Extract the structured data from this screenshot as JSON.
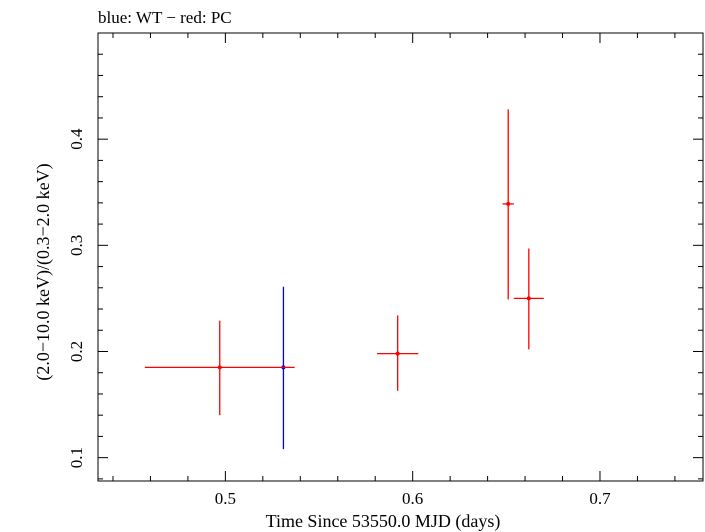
{
  "chart_data": {
    "type": "scatter",
    "title": "blue: WT − red: PC",
    "xlabel": "Time Since 53550.0 MJD (days)",
    "ylabel": "(2.0−10.0 keV)/(0.3−2.0 keV)",
    "xlim": [
      0.432,
      0.755
    ],
    "ylim": [
      0.078,
      0.5
    ],
    "x_ticks": [
      0.5,
      0.6,
      0.7
    ],
    "x_tick_labels": [
      "0.5",
      "0.6",
      "0.7"
    ],
    "y_ticks": [
      0.1,
      0.2,
      0.3,
      0.4
    ],
    "y_tick_labels": [
      "0.1",
      "0.2",
      "0.3",
      "0.4"
    ],
    "grid": false,
    "legend": "none",
    "series": [
      {
        "name": "WT",
        "color": "#0000ff",
        "points": [
          {
            "x": 0.531,
            "y": 0.185,
            "xerr": [
              0.0,
              0.0
            ],
            "yerr": [
              0.077,
              0.076
            ]
          }
        ]
      },
      {
        "name": "PC",
        "color": "#ff0000",
        "points": [
          {
            "x": 0.497,
            "y": 0.185,
            "xerr": [
              0.04,
              0.04
            ],
            "yerr": [
              0.045,
              0.044
            ]
          },
          {
            "x": 0.592,
            "y": 0.198,
            "xerr": [
              0.011,
              0.011
            ],
            "yerr": [
              0.035,
              0.036
            ]
          },
          {
            "x": 0.651,
            "y": 0.339,
            "xerr": [
              0.003,
              0.003
            ],
            "yerr": [
              0.09,
              0.089
            ]
          },
          {
            "x": 0.662,
            "y": 0.25,
            "xerr": [
              0.008,
              0.008
            ],
            "yerr": [
              0.048,
              0.047
            ]
          }
        ]
      }
    ]
  }
}
